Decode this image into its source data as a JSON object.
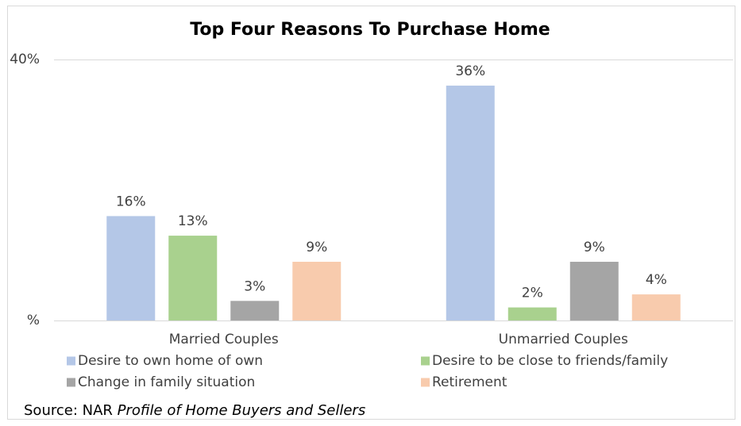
{
  "chart_data": {
    "type": "bar",
    "title": "Top Four Reasons To Purchase Home",
    "categories": [
      "Married Couples",
      "Unmarried Couples"
    ],
    "series": [
      {
        "name": "Desire to own home of own",
        "color": "#b4c7e7",
        "values": [
          16,
          36
        ],
        "value_labels": [
          "16%",
          "36%"
        ]
      },
      {
        "name": "Desire to be close to friends/family",
        "color": "#a9d18e",
        "values": [
          13,
          2
        ],
        "value_labels": [
          "13%",
          "2%"
        ]
      },
      {
        "name": "Change in family situation",
        "color": "#a5a5a5",
        "values": [
          3,
          9
        ],
        "value_labels": [
          "3%",
          "9%"
        ]
      },
      {
        "name": "Retirement",
        "color": "#f8cbad",
        "values": [
          9,
          4
        ],
        "value_labels": [
          "9%",
          "4%"
        ]
      }
    ],
    "ylim": [
      0,
      40
    ],
    "yticks": [
      {
        "value": 0,
        "label": "%"
      },
      {
        "value": 40,
        "label": "40%"
      }
    ],
    "grid": true,
    "source": "Source: NAR",
    "source_title": "Profile of Home Buyers and Sellers"
  }
}
